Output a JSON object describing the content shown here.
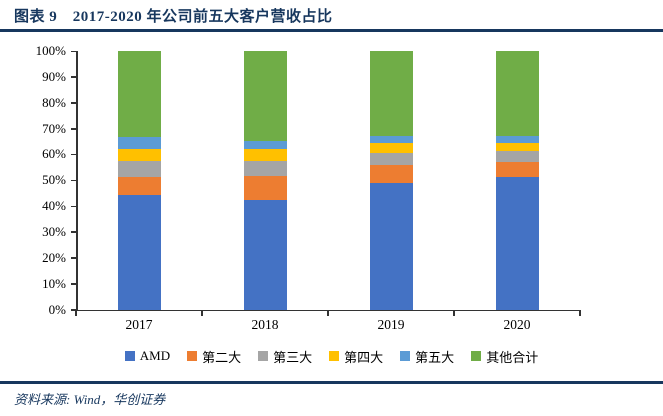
{
  "header": {
    "title": "图表 9　2017-2020 年公司前五大客户营收占比"
  },
  "footer": {
    "source": "资料来源: Wind，华创证券"
  },
  "colors": {
    "accent": "#17375E",
    "axis": "#333333"
  },
  "chart_data": {
    "type": "bar",
    "stacked": true,
    "percent": true,
    "title": "2017-2020 年公司前五大客户营收占比",
    "categories": [
      "2017",
      "2018",
      "2019",
      "2020"
    ],
    "series": [
      {
        "name": "AMD",
        "color": "#4472C4",
        "values": [
          44.3,
          42.3,
          49.0,
          51.1
        ]
      },
      {
        "name": "第二大",
        "color": "#ED7D31",
        "values": [
          6.9,
          9.3,
          7.1,
          6.0
        ]
      },
      {
        "name": "第三大",
        "color": "#A5A5A5",
        "values": [
          6.2,
          5.8,
          4.5,
          4.2
        ]
      },
      {
        "name": "第四大",
        "color": "#FFC000",
        "values": [
          4.7,
          4.7,
          3.9,
          3.2
        ]
      },
      {
        "name": "第五大",
        "color": "#5B9BD5",
        "values": [
          4.6,
          3.1,
          2.6,
          2.7
        ]
      },
      {
        "name": "其他合计",
        "color": "#70AD47",
        "values": [
          33.3,
          34.8,
          32.9,
          32.8
        ]
      }
    ],
    "yticks": [
      "0%",
      "10%",
      "20%",
      "30%",
      "40%",
      "50%",
      "60%",
      "70%",
      "80%",
      "90%",
      "100%"
    ],
    "ylim": [
      0,
      100
    ],
    "grid": false,
    "legend_position": "bottom"
  }
}
